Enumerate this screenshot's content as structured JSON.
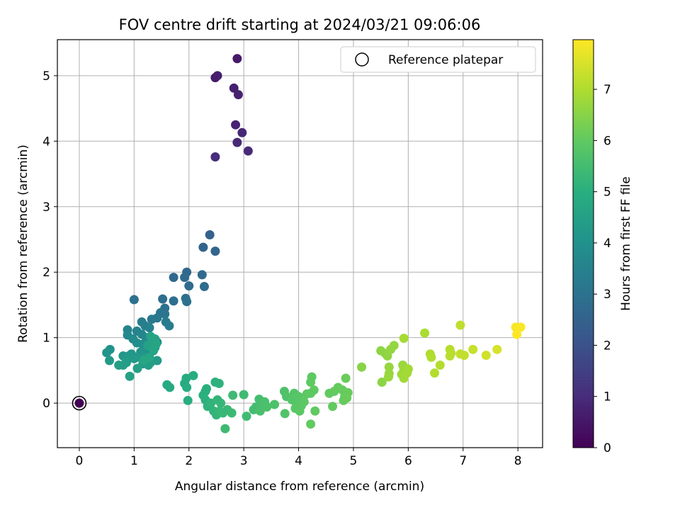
{
  "chart_data": {
    "type": "scatter",
    "title": "FOV centre drift starting at 2024/03/21 09:06:06",
    "xlabel": "Angular distance from reference (arcmin)",
    "ylabel": "Rotation from reference (arcmin)",
    "xlim": [
      -0.4,
      8.45
    ],
    "ylim": [
      -0.68,
      5.55
    ],
    "xticks": [
      0,
      1,
      2,
      3,
      4,
      5,
      6,
      7,
      8
    ],
    "yticks": [
      0,
      1,
      2,
      3,
      4,
      5
    ],
    "grid": true,
    "legend": {
      "position": "top-right",
      "entries": [
        "Reference platepar"
      ]
    },
    "colorbar": {
      "label": "Hours from first FF file",
      "range": [
        0,
        7.97
      ],
      "ticks": [
        0,
        1,
        2,
        3,
        4,
        5,
        6,
        7
      ],
      "colormap": "viridis"
    },
    "reference_point": {
      "x": 0,
      "y": 0,
      "hours": 0
    },
    "points": [
      {
        "x": 2.88,
        "y": 5.26,
        "h": 0.55
      },
      {
        "x": 2.48,
        "y": 4.97,
        "h": 0.6
      },
      {
        "x": 2.52,
        "y": 5.0,
        "h": 0.65
      },
      {
        "x": 2.82,
        "y": 4.81,
        "h": 0.7
      },
      {
        "x": 2.9,
        "y": 4.71,
        "h": 0.75
      },
      {
        "x": 2.85,
        "y": 4.25,
        "h": 0.8
      },
      {
        "x": 2.97,
        "y": 4.13,
        "h": 0.85
      },
      {
        "x": 2.88,
        "y": 3.98,
        "h": 0.9
      },
      {
        "x": 3.08,
        "y": 3.85,
        "h": 0.95
      },
      {
        "x": 2.48,
        "y": 3.76,
        "h": 1.0
      },
      {
        "x": 2.38,
        "y": 2.57,
        "h": 2.5
      },
      {
        "x": 2.26,
        "y": 2.38,
        "h": 2.55
      },
      {
        "x": 2.48,
        "y": 2.32,
        "h": 2.6
      },
      {
        "x": 1.96,
        "y": 2.0,
        "h": 2.65
      },
      {
        "x": 2.24,
        "y": 1.96,
        "h": 2.7
      },
      {
        "x": 1.72,
        "y": 1.92,
        "h": 2.72
      },
      {
        "x": 1.92,
        "y": 1.92,
        "h": 2.75
      },
      {
        "x": 2.0,
        "y": 1.79,
        "h": 2.78
      },
      {
        "x": 2.28,
        "y": 1.78,
        "h": 2.8
      },
      {
        "x": 1.52,
        "y": 1.59,
        "h": 2.85
      },
      {
        "x": 1.94,
        "y": 1.6,
        "h": 2.88
      },
      {
        "x": 1.72,
        "y": 1.56,
        "h": 2.9
      },
      {
        "x": 1.96,
        "y": 1.55,
        "h": 2.92
      },
      {
        "x": 1.0,
        "y": 1.58,
        "h": 2.95
      },
      {
        "x": 1.56,
        "y": 1.45,
        "h": 3.0
      },
      {
        "x": 1.48,
        "y": 1.38,
        "h": 3.05
      },
      {
        "x": 1.56,
        "y": 1.36,
        "h": 3.1
      },
      {
        "x": 1.42,
        "y": 1.3,
        "h": 3.15
      },
      {
        "x": 1.32,
        "y": 1.28,
        "h": 3.2
      },
      {
        "x": 1.58,
        "y": 1.24,
        "h": 3.25
      },
      {
        "x": 1.64,
        "y": 1.18,
        "h": 3.3
      },
      {
        "x": 1.14,
        "y": 1.24,
        "h": 3.35
      },
      {
        "x": 1.2,
        "y": 1.18,
        "h": 3.4
      },
      {
        "x": 1.28,
        "y": 1.15,
        "h": 3.45
      },
      {
        "x": 0.88,
        "y": 1.12,
        "h": 3.5
      },
      {
        "x": 1.05,
        "y": 1.1,
        "h": 3.55
      },
      {
        "x": 1.14,
        "y": 1.05,
        "h": 3.6
      },
      {
        "x": 1.22,
        "y": 1.0,
        "h": 3.65
      },
      {
        "x": 0.88,
        "y": 1.04,
        "h": 3.7
      },
      {
        "x": 0.98,
        "y": 0.98,
        "h": 3.75
      },
      {
        "x": 1.35,
        "y": 0.97,
        "h": 3.8
      },
      {
        "x": 1.42,
        "y": 0.93,
        "h": 3.85
      },
      {
        "x": 1.05,
        "y": 0.92,
        "h": 3.9
      },
      {
        "x": 1.15,
        "y": 0.9,
        "h": 3.92
      },
      {
        "x": 1.28,
        "y": 0.86,
        "h": 3.95
      },
      {
        "x": 1.38,
        "y": 0.85,
        "h": 3.98
      },
      {
        "x": 1.22,
        "y": 0.82,
        "h": 4.0
      },
      {
        "x": 1.35,
        "y": 0.8,
        "h": 4.02
      },
      {
        "x": 0.56,
        "y": 0.82,
        "h": 4.05
      },
      {
        "x": 0.5,
        "y": 0.77,
        "h": 4.08
      },
      {
        "x": 1.12,
        "y": 0.78,
        "h": 4.1
      },
      {
        "x": 0.95,
        "y": 0.75,
        "h": 4.12
      },
      {
        "x": 0.8,
        "y": 0.72,
        "h": 4.15
      },
      {
        "x": 0.9,
        "y": 0.72,
        "h": 4.18
      },
      {
        "x": 1.05,
        "y": 0.7,
        "h": 4.2
      },
      {
        "x": 1.2,
        "y": 0.7,
        "h": 4.22
      },
      {
        "x": 0.86,
        "y": 0.68,
        "h": 4.25
      },
      {
        "x": 1.0,
        "y": 0.68,
        "h": 4.28
      },
      {
        "x": 0.55,
        "y": 0.65,
        "h": 4.3
      },
      {
        "x": 1.42,
        "y": 0.65,
        "h": 4.32
      },
      {
        "x": 1.3,
        "y": 0.62,
        "h": 4.35
      },
      {
        "x": 0.86,
        "y": 0.62,
        "h": 4.38
      },
      {
        "x": 1.16,
        "y": 0.6,
        "h": 4.4
      },
      {
        "x": 0.8,
        "y": 0.58,
        "h": 4.42
      },
      {
        "x": 0.72,
        "y": 0.58,
        "h": 4.45
      },
      {
        "x": 1.26,
        "y": 0.58,
        "h": 4.48
      },
      {
        "x": 1.06,
        "y": 0.53,
        "h": 4.5
      },
      {
        "x": 0.92,
        "y": 0.41,
        "h": 4.52
      },
      {
        "x": 1.25,
        "y": 0.88,
        "h": 4.55
      },
      {
        "x": 1.32,
        "y": 0.93,
        "h": 4.58
      },
      {
        "x": 1.38,
        "y": 0.98,
        "h": 4.6
      },
      {
        "x": 1.3,
        "y": 1.02,
        "h": 4.62
      },
      {
        "x": 1.4,
        "y": 0.9,
        "h": 4.65
      },
      {
        "x": 1.36,
        "y": 0.82,
        "h": 4.68
      },
      {
        "x": 1.28,
        "y": 0.7,
        "h": 4.7
      },
      {
        "x": 1.18,
        "y": 0.66,
        "h": 4.72
      },
      {
        "x": 1.6,
        "y": 0.28,
        "h": 4.8
      },
      {
        "x": 1.65,
        "y": 0.24,
        "h": 4.82
      },
      {
        "x": 1.92,
        "y": 0.3,
        "h": 4.85
      },
      {
        "x": 1.95,
        "y": 0.38,
        "h": 4.88
      },
      {
        "x": 2.08,
        "y": 0.42,
        "h": 4.9
      },
      {
        "x": 1.96,
        "y": 0.24,
        "h": 4.92
      },
      {
        "x": 1.98,
        "y": 0.04,
        "h": 4.95
      },
      {
        "x": 2.3,
        "y": 0.18,
        "h": 4.98
      },
      {
        "x": 2.32,
        "y": 0.22,
        "h": 5.0
      },
      {
        "x": 2.26,
        "y": 0.12,
        "h": 5.02
      },
      {
        "x": 2.3,
        "y": 0.05,
        "h": 5.05
      },
      {
        "x": 2.48,
        "y": 0.32,
        "h": 5.08
      },
      {
        "x": 2.55,
        "y": 0.3,
        "h": 5.1
      },
      {
        "x": 2.34,
        "y": -0.05,
        "h": 5.12
      },
      {
        "x": 2.4,
        "y": 0.0,
        "h": 5.15
      },
      {
        "x": 2.45,
        "y": -0.12,
        "h": 5.18
      },
      {
        "x": 2.5,
        "y": -0.18,
        "h": 5.2
      },
      {
        "x": 2.52,
        "y": 0.05,
        "h": 5.22
      },
      {
        "x": 2.58,
        "y": 0.0,
        "h": 5.25
      },
      {
        "x": 2.56,
        "y": -0.12,
        "h": 5.28
      },
      {
        "x": 2.62,
        "y": -0.15,
        "h": 5.3
      },
      {
        "x": 2.7,
        "y": -0.1,
        "h": 5.32
      },
      {
        "x": 2.78,
        "y": -0.15,
        "h": 5.35
      },
      {
        "x": 2.66,
        "y": -0.39,
        "h": 5.38
      },
      {
        "x": 2.8,
        "y": 0.12,
        "h": 5.4
      },
      {
        "x": 3.0,
        "y": 0.13,
        "h": 5.42
      },
      {
        "x": 3.05,
        "y": -0.2,
        "h": 5.45
      },
      {
        "x": 3.18,
        "y": -0.1,
        "h": 5.48
      },
      {
        "x": 3.22,
        "y": -0.06,
        "h": 5.5
      },
      {
        "x": 3.28,
        "y": 0.06,
        "h": 5.52
      },
      {
        "x": 3.3,
        "y": -0.02,
        "h": 5.55
      },
      {
        "x": 3.34,
        "y": 0.0,
        "h": 5.58
      },
      {
        "x": 3.38,
        "y": 0.02,
        "h": 5.6
      },
      {
        "x": 3.3,
        "y": -0.12,
        "h": 5.62
      },
      {
        "x": 3.42,
        "y": -0.06,
        "h": 5.65
      },
      {
        "x": 3.56,
        "y": -0.02,
        "h": 5.68
      },
      {
        "x": 3.74,
        "y": 0.18,
        "h": 5.7
      },
      {
        "x": 3.78,
        "y": 0.1,
        "h": 5.72
      },
      {
        "x": 3.75,
        "y": -0.16,
        "h": 5.75
      },
      {
        "x": 3.88,
        "y": 0.05,
        "h": 5.78
      },
      {
        "x": 3.92,
        "y": 0.15,
        "h": 5.8
      },
      {
        "x": 3.96,
        "y": 0.0,
        "h": 5.82
      },
      {
        "x": 4.0,
        "y": 0.1,
        "h": 5.85
      },
      {
        "x": 3.94,
        "y": -0.08,
        "h": 5.88
      },
      {
        "x": 4.05,
        "y": -0.04,
        "h": 5.9
      },
      {
        "x": 4.02,
        "y": -0.12,
        "h": 5.92
      },
      {
        "x": 4.1,
        "y": 0.02,
        "h": 5.94
      },
      {
        "x": 4.15,
        "y": 0.14,
        "h": 5.95
      },
      {
        "x": 4.22,
        "y": 0.15,
        "h": 5.96
      },
      {
        "x": 4.28,
        "y": 0.2,
        "h": 5.97
      },
      {
        "x": 4.24,
        "y": 0.4,
        "h": 5.98
      },
      {
        "x": 4.22,
        "y": 0.32,
        "h": 5.99
      },
      {
        "x": 4.3,
        "y": -0.12,
        "h": 6.0
      },
      {
        "x": 4.22,
        "y": -0.32,
        "h": 6.01
      },
      {
        "x": 4.56,
        "y": 0.15,
        "h": 6.02
      },
      {
        "x": 4.65,
        "y": 0.18,
        "h": 6.03
      },
      {
        "x": 4.62,
        "y": -0.05,
        "h": 6.04
      },
      {
        "x": 4.72,
        "y": 0.24,
        "h": 6.05
      },
      {
        "x": 4.8,
        "y": 0.2,
        "h": 6.06
      },
      {
        "x": 4.84,
        "y": 0.1,
        "h": 6.07
      },
      {
        "x": 4.82,
        "y": 0.04,
        "h": 6.08
      },
      {
        "x": 4.9,
        "y": 0.16,
        "h": 6.09
      },
      {
        "x": 4.88,
        "y": 0.08,
        "h": 6.1
      },
      {
        "x": 4.86,
        "y": 0.38,
        "h": 6.11
      },
      {
        "x": 5.15,
        "y": 0.55,
        "h": 6.5
      },
      {
        "x": 5.52,
        "y": 0.32,
        "h": 6.55
      },
      {
        "x": 5.5,
        "y": 0.8,
        "h": 6.58
      },
      {
        "x": 5.58,
        "y": 0.76,
        "h": 6.6
      },
      {
        "x": 5.62,
        "y": 0.72,
        "h": 6.62
      },
      {
        "x": 5.68,
        "y": 0.82,
        "h": 6.64
      },
      {
        "x": 5.74,
        "y": 0.88,
        "h": 6.66
      },
      {
        "x": 5.65,
        "y": 0.55,
        "h": 6.68
      },
      {
        "x": 5.65,
        "y": 0.45,
        "h": 6.7
      },
      {
        "x": 5.64,
        "y": 0.4,
        "h": 6.72
      },
      {
        "x": 5.9,
        "y": 0.58,
        "h": 6.74
      },
      {
        "x": 5.92,
        "y": 0.52,
        "h": 6.76
      },
      {
        "x": 5.95,
        "y": 0.48,
        "h": 6.78
      },
      {
        "x": 5.88,
        "y": 0.44,
        "h": 6.8
      },
      {
        "x": 5.92,
        "y": 0.38,
        "h": 6.82
      },
      {
        "x": 6.0,
        "y": 0.52,
        "h": 6.84
      },
      {
        "x": 5.98,
        "y": 0.46,
        "h": 6.86
      },
      {
        "x": 5.92,
        "y": 0.99,
        "h": 6.9
      },
      {
        "x": 6.3,
        "y": 1.07,
        "h": 6.95
      },
      {
        "x": 6.4,
        "y": 0.75,
        "h": 7.0
      },
      {
        "x": 6.42,
        "y": 0.7,
        "h": 7.02
      },
      {
        "x": 6.48,
        "y": 0.46,
        "h": 7.04
      },
      {
        "x": 6.58,
        "y": 0.58,
        "h": 7.06
      },
      {
        "x": 6.76,
        "y": 0.82,
        "h": 7.08
      },
      {
        "x": 6.78,
        "y": 0.76,
        "h": 7.1
      },
      {
        "x": 6.76,
        "y": 0.72,
        "h": 7.12
      },
      {
        "x": 6.95,
        "y": 1.19,
        "h": 7.2
      },
      {
        "x": 6.95,
        "y": 0.75,
        "h": 7.22
      },
      {
        "x": 7.02,
        "y": 0.73,
        "h": 7.24
      },
      {
        "x": 7.18,
        "y": 0.82,
        "h": 7.3
      },
      {
        "x": 7.42,
        "y": 0.73,
        "h": 7.4
      },
      {
        "x": 7.62,
        "y": 0.82,
        "h": 7.5
      },
      {
        "x": 7.96,
        "y": 1.16,
        "h": 7.9
      },
      {
        "x": 8.05,
        "y": 1.16,
        "h": 7.93
      },
      {
        "x": 7.98,
        "y": 1.05,
        "h": 7.95
      }
    ]
  }
}
